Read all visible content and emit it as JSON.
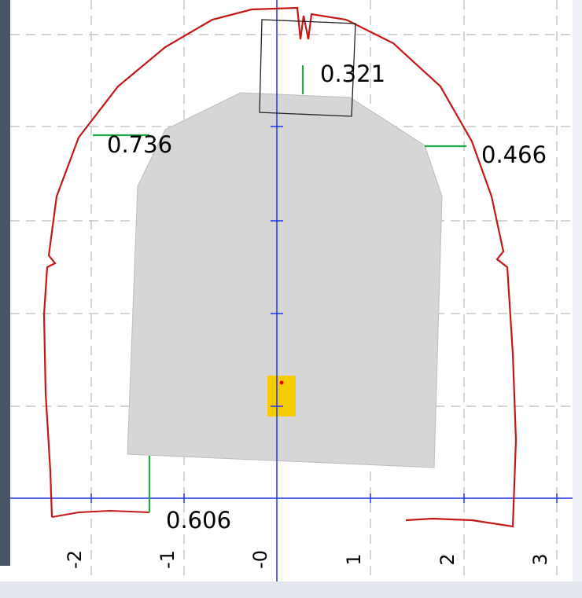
{
  "profile_view": {
    "axis_ticks": [
      "-2",
      "-1",
      "-0",
      "1",
      "2",
      "3"
    ],
    "clearances": [
      "0.736",
      "0.466",
      "0.321",
      "0.606"
    ]
  }
}
